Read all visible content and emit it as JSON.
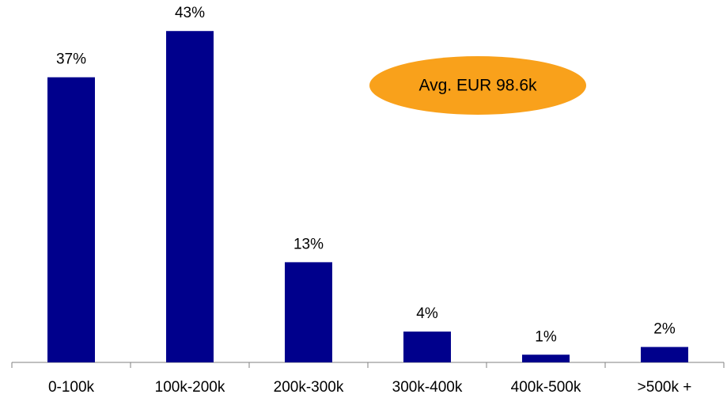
{
  "chart_data": {
    "type": "bar",
    "categories": [
      "0-100k",
      "100k-200k",
      "200k-300k",
      "300k-400k",
      "400k-500k",
      ">500k +"
    ],
    "values": [
      37,
      43,
      13,
      4,
      1,
      2
    ],
    "value_labels": [
      "37%",
      "43%",
      "13%",
      "4%",
      "1%",
      "2%"
    ],
    "color": "#00008c",
    "ylim": [
      0,
      46
    ],
    "annotation": {
      "text": "Avg. EUR 98.6k",
      "color": "#f9a11b"
    }
  }
}
